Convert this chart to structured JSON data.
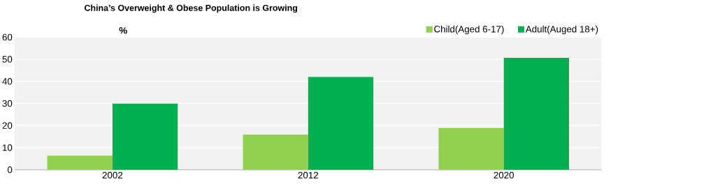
{
  "chart_data": {
    "type": "bar",
    "title": "China’s Overweight & Obese Population is Growing",
    "ylabel": "%",
    "categories": [
      "2002",
      "2012",
      "2020"
    ],
    "series": [
      {
        "name": "Child(Aged 6-17)",
        "color": "#92d050",
        "values": [
          6.4,
          15.9,
          18.9
        ]
      },
      {
        "name": "Adult(Auged 18+)",
        "color": "#00b050",
        "values": [
          29.9,
          42.0,
          50.7
        ]
      }
    ],
    "ylim": [
      0,
      60
    ],
    "yticks": [
      0,
      10,
      20,
      30,
      40,
      50,
      60
    ],
    "grid": "y",
    "legend": "top right"
  }
}
